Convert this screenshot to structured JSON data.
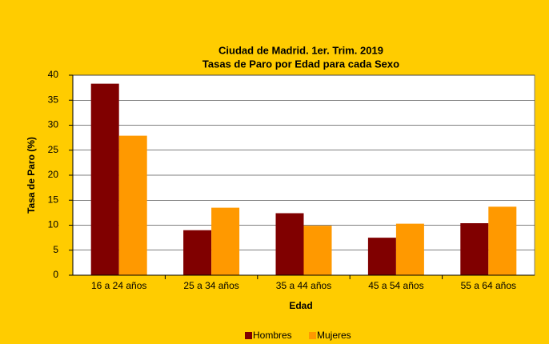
{
  "chart_data": {
    "type": "bar",
    "title": "Ciudad de Madrid. 1er. Trim. 2019",
    "subtitle": "Tasas de Paro por Edad para cada Sexo",
    "x_label": "Edad",
    "y_label": "Tasa de Paro (%)",
    "categories": [
      "16 a 24 años",
      "25 a 34 años",
      "35 a 44 años",
      "45 a 54 años",
      "55 a 64 años"
    ],
    "series": [
      {
        "name": "Hombres",
        "color": "#800000",
        "values": [
          38.3,
          9.0,
          12.4,
          7.5,
          10.4
        ]
      },
      {
        "name": "Mujeres",
        "color": "#FF9900",
        "values": [
          27.9,
          13.5,
          9.9,
          10.3,
          13.7
        ]
      }
    ],
    "ylim": [
      0,
      40
    ],
    "yticks": [
      0,
      5,
      10,
      15,
      20,
      25,
      30,
      35,
      40
    ],
    "grid": true,
    "legend": "bottom"
  }
}
